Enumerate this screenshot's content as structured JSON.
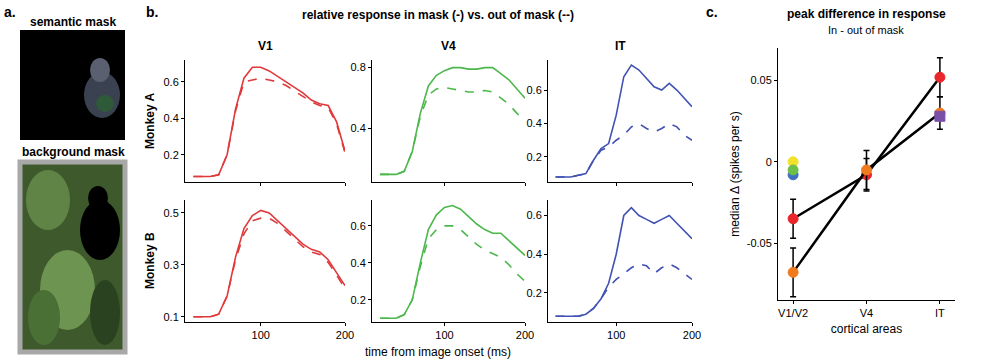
{
  "panels": {
    "a": {
      "letter": "a.",
      "images": [
        "semantic mask",
        "background mask"
      ]
    },
    "b": {
      "letter": "b.",
      "title": "relative response in mask (-) vs. out of mask (--)",
      "columns": [
        "V1",
        "V4",
        "IT"
      ],
      "rows": [
        "Monkey A",
        "Monkey B"
      ],
      "x_label": "time from image onset (ms)"
    },
    "c": {
      "letter": "c."
    }
  },
  "chart_data": [
    {
      "type": "line",
      "tick_labels": "y",
      "x": [
        20,
        30,
        40,
        50,
        60,
        70,
        80,
        90,
        100,
        110,
        120,
        130,
        140,
        150,
        160,
        170,
        180,
        190,
        200
      ],
      "xlim": [
        10,
        200
      ],
      "xticks": [
        100,
        200
      ],
      "ylim": [
        0.05,
        0.72
      ],
      "yticks": [
        0.2,
        0.4,
        0.6
      ],
      "series": [
        {
          "color": "#e0393c",
          "line_style": "solid",
          "values": [
            0.08,
            0.08,
            0.08,
            0.09,
            0.2,
            0.45,
            0.62,
            0.68,
            0.68,
            0.66,
            0.63,
            0.6,
            0.57,
            0.54,
            0.5,
            0.48,
            0.47,
            0.38,
            0.22
          ]
        },
        {
          "color": "#e0393c",
          "line_style": "dash",
          "values": [
            0.08,
            0.08,
            0.08,
            0.09,
            0.2,
            0.44,
            0.6,
            0.61,
            0.62,
            0.61,
            0.6,
            0.58,
            0.55,
            0.52,
            0.49,
            0.47,
            0.46,
            0.37,
            0.21
          ]
        }
      ]
    },
    {
      "type": "line",
      "tick_labels": "y",
      "x": [
        20,
        30,
        40,
        50,
        60,
        70,
        80,
        90,
        100,
        110,
        120,
        130,
        140,
        150,
        160,
        170,
        180,
        190,
        200
      ],
      "xlim": [
        10,
        200
      ],
      "xticks": [
        100,
        200
      ],
      "ylim": [
        0.05,
        0.85
      ],
      "yticks": [
        0.4,
        0.8
      ],
      "series": [
        {
          "color": "#4cb84c",
          "line_style": "solid",
          "values": [
            0.1,
            0.1,
            0.1,
            0.12,
            0.25,
            0.5,
            0.68,
            0.75,
            0.78,
            0.8,
            0.8,
            0.79,
            0.79,
            0.8,
            0.8,
            0.76,
            0.72,
            0.66,
            0.6
          ]
        },
        {
          "color": "#4cb84c",
          "line_style": "dash",
          "values": [
            0.1,
            0.1,
            0.1,
            0.12,
            0.25,
            0.48,
            0.62,
            0.66,
            0.67,
            0.66,
            0.65,
            0.64,
            0.64,
            0.65,
            0.64,
            0.6,
            0.56,
            0.5,
            0.45
          ]
        }
      ]
    },
    {
      "type": "line",
      "tick_labels": "y",
      "x": [
        20,
        30,
        40,
        50,
        60,
        70,
        80,
        90,
        100,
        110,
        120,
        130,
        140,
        150,
        160,
        170,
        180,
        190,
        200
      ],
      "xlim": [
        10,
        200
      ],
      "xticks": [
        100,
        200
      ],
      "ylim": [
        0.05,
        0.78
      ],
      "yticks": [
        0.2,
        0.4,
        0.6
      ],
      "series": [
        {
          "color": "#4152b3",
          "line_style": "solid",
          "values": [
            0.08,
            0.08,
            0.08,
            0.09,
            0.1,
            0.18,
            0.25,
            0.28,
            0.45,
            0.68,
            0.75,
            0.72,
            0.67,
            0.62,
            0.6,
            0.64,
            0.6,
            0.55,
            0.5
          ]
        },
        {
          "color": "#4152b3",
          "line_style": "dash",
          "values": [
            0.08,
            0.08,
            0.08,
            0.09,
            0.1,
            0.18,
            0.24,
            0.26,
            0.3,
            0.33,
            0.38,
            0.4,
            0.37,
            0.35,
            0.37,
            0.4,
            0.38,
            0.33,
            0.3
          ]
        }
      ]
    },
    {
      "type": "line",
      "x": [
        20,
        30,
        40,
        50,
        60,
        70,
        80,
        90,
        100,
        110,
        120,
        130,
        140,
        150,
        160,
        170,
        180,
        190,
        200
      ],
      "xlim": [
        10,
        200
      ],
      "xticks": [
        100,
        200
      ],
      "ylim": [
        0.08,
        0.55
      ],
      "yticks": [
        0.1,
        0.3,
        0.5
      ],
      "series": [
        {
          "color": "#e0393c",
          "line_style": "solid",
          "values": [
            0.1,
            0.1,
            0.1,
            0.11,
            0.18,
            0.33,
            0.44,
            0.49,
            0.51,
            0.5,
            0.47,
            0.44,
            0.41,
            0.38,
            0.36,
            0.35,
            0.32,
            0.27,
            0.22
          ]
        },
        {
          "color": "#e0393c",
          "line_style": "dash",
          "values": [
            0.1,
            0.1,
            0.1,
            0.11,
            0.18,
            0.32,
            0.42,
            0.47,
            0.48,
            0.48,
            0.46,
            0.43,
            0.4,
            0.37,
            0.35,
            0.34,
            0.31,
            0.26,
            0.21
          ]
        }
      ]
    },
    {
      "type": "line",
      "x": [
        20,
        30,
        40,
        50,
        60,
        70,
        80,
        90,
        100,
        110,
        120,
        130,
        140,
        150,
        160,
        170,
        180,
        190,
        200
      ],
      "xlim": [
        10,
        200
      ],
      "xticks": [
        100,
        200
      ],
      "ylim": [
        0.08,
        0.74
      ],
      "yticks": [
        0.2,
        0.4,
        0.6
      ],
      "series": [
        {
          "color": "#4cb84c",
          "line_style": "solid",
          "values": [
            0.1,
            0.1,
            0.1,
            0.12,
            0.2,
            0.4,
            0.58,
            0.66,
            0.7,
            0.71,
            0.69,
            0.65,
            0.61,
            0.58,
            0.56,
            0.56,
            0.52,
            0.48,
            0.44
          ]
        },
        {
          "color": "#4cb84c",
          "line_style": "dash",
          "values": [
            0.1,
            0.1,
            0.1,
            0.12,
            0.2,
            0.38,
            0.53,
            0.58,
            0.6,
            0.6,
            0.58,
            0.54,
            0.5,
            0.47,
            0.45,
            0.43,
            0.39,
            0.34,
            0.3
          ]
        }
      ]
    },
    {
      "type": "line",
      "x": [
        20,
        30,
        40,
        50,
        60,
        70,
        80,
        90,
        100,
        110,
        120,
        130,
        140,
        150,
        160,
        170,
        180,
        190,
        200
      ],
      "xlim": [
        10,
        200
      ],
      "xticks": [
        100,
        200
      ],
      "ylim": [
        0.05,
        0.68
      ],
      "yticks": [
        0.2,
        0.4,
        0.6
      ],
      "series": [
        {
          "color": "#4152b3",
          "line_style": "solid",
          "values": [
            0.08,
            0.08,
            0.08,
            0.08,
            0.09,
            0.12,
            0.17,
            0.25,
            0.4,
            0.6,
            0.64,
            0.6,
            0.58,
            0.56,
            0.58,
            0.6,
            0.56,
            0.52,
            0.48
          ]
        },
        {
          "color": "#4152b3",
          "line_style": "dash",
          "values": [
            0.08,
            0.08,
            0.08,
            0.08,
            0.09,
            0.12,
            0.17,
            0.23,
            0.27,
            0.3,
            0.33,
            0.35,
            0.34,
            0.3,
            0.33,
            0.35,
            0.33,
            0.3,
            0.27
          ]
        }
      ]
    },
    {
      "type": "scatter",
      "title": "peak difference in response",
      "subtitle": "In - out of mask",
      "x_label": "cortical areas",
      "y_label": "median Δ (spikes per s)",
      "categories": [
        "V1/V2",
        "V4",
        "IT"
      ],
      "ylim": [
        -0.085,
        0.07
      ],
      "yticks": [
        -0.05,
        0,
        0.05
      ],
      "series": [
        {
          "color": "#e8262b",
          "marker": "circle",
          "line_style": "solid",
          "values": [
            -0.035,
            -0.008,
            0.052
          ],
          "errors": [
            0.012,
            0.01,
            0.012
          ]
        },
        {
          "color": "#f07b1e",
          "marker": "circle",
          "line_style": "solid",
          "values": [
            -0.068,
            -0.005,
            0.03
          ],
          "errors": [
            0.015,
            0.012,
            0.01
          ]
        },
        {
          "color": "#3f6fc0",
          "marker": "circle",
          "line_style": "none",
          "values": [
            -0.008,
            null,
            null
          ]
        },
        {
          "color": "#f2e22a",
          "marker": "circle",
          "line_style": "none",
          "values": [
            0.0,
            null,
            null
          ]
        },
        {
          "color": "#6cc04a",
          "marker": "circle",
          "line_style": "none",
          "values": [
            -0.005,
            null,
            null
          ]
        },
        {
          "color": "#7b4fa8",
          "marker": "square",
          "line_style": "none",
          "values": [
            null,
            null,
            0.028
          ]
        }
      ]
    }
  ]
}
